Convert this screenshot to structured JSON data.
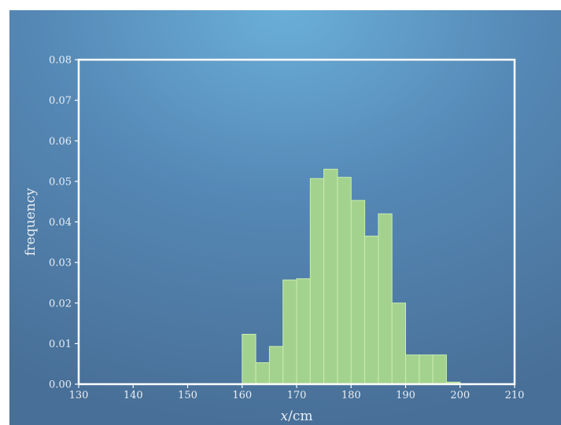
{
  "chart_data": {
    "type": "bar",
    "title": "",
    "xlabel": "",
    "xlabel_var": "x",
    "xlabel_unit": "/cm",
    "ylabel": "frequency",
    "xlim": [
      130,
      210
    ],
    "ylim": [
      0,
      0.08
    ],
    "xticks": [
      "130",
      "140",
      "150",
      "160",
      "170",
      "180",
      "190",
      "200",
      "210"
    ],
    "yticks": [
      "0.00",
      "0.01",
      "0.02",
      "0.03",
      "0.04",
      "0.05",
      "0.06",
      "0.07",
      "0.08"
    ],
    "bin_width": 2.5,
    "bins": [
      {
        "start": 160.0,
        "end": 162.5,
        "value": 0.0123
      },
      {
        "start": 162.5,
        "end": 165.0,
        "value": 0.0053
      },
      {
        "start": 165.0,
        "end": 167.5,
        "value": 0.0093
      },
      {
        "start": 167.5,
        "end": 170.0,
        "value": 0.0257
      },
      {
        "start": 170.0,
        "end": 172.5,
        "value": 0.026
      },
      {
        "start": 172.5,
        "end": 175.0,
        "value": 0.0507
      },
      {
        "start": 175.0,
        "end": 177.5,
        "value": 0.053
      },
      {
        "start": 177.5,
        "end": 180.0,
        "value": 0.051
      },
      {
        "start": 180.0,
        "end": 182.5,
        "value": 0.0453
      },
      {
        "start": 182.5,
        "end": 185.0,
        "value": 0.0365
      },
      {
        "start": 185.0,
        "end": 187.5,
        "value": 0.042
      },
      {
        "start": 187.5,
        "end": 190.0,
        "value": 0.02
      },
      {
        "start": 190.0,
        "end": 192.5,
        "value": 0.0072
      },
      {
        "start": 192.5,
        "end": 195.0,
        "value": 0.0072
      },
      {
        "start": 195.0,
        "end": 197.5,
        "value": 0.0072
      },
      {
        "start": 197.5,
        "end": 200.0,
        "value": 0.0005
      }
    ],
    "grid": false,
    "legend": "none",
    "bar_fill": "#a3d28e",
    "bar_edge": "#c9ecae",
    "frame_color": "#ffffff",
    "background_center": "#6aafd8",
    "background_edge": "#486f97"
  }
}
